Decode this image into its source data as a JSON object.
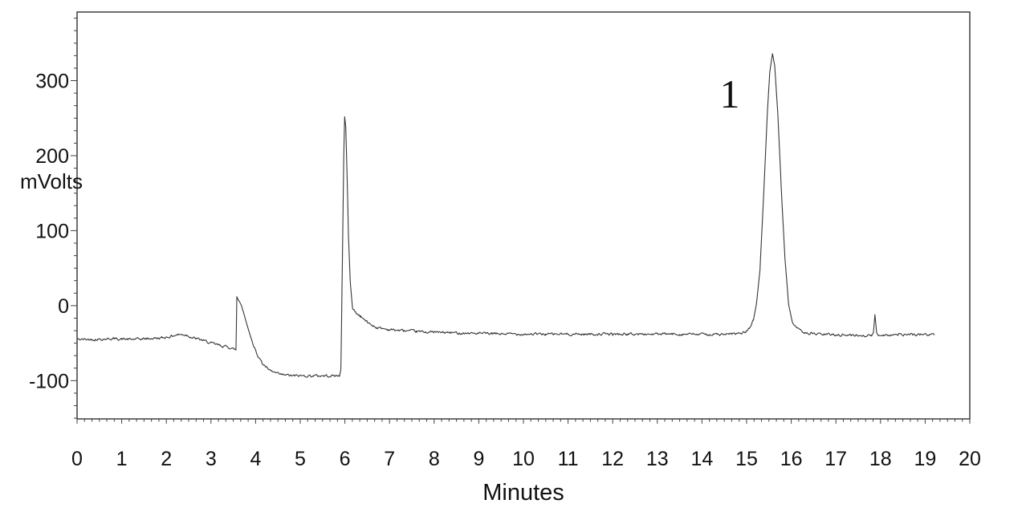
{
  "chart_data": {
    "type": "line",
    "title": "",
    "xlabel": "Minutes",
    "ylabel": "mVolts",
    "xlim": [
      0,
      20
    ],
    "ylim": [
      -151,
      391.5
    ],
    "x_major_ticks": [
      0,
      1,
      2,
      3,
      4,
      5,
      6,
      7,
      8,
      9,
      10,
      11,
      12,
      13,
      14,
      15,
      16,
      17,
      18,
      19,
      20
    ],
    "y_major_ticks": [
      -100,
      0,
      100,
      200,
      300
    ],
    "minor_divisions_per_major": 6,
    "grid": false,
    "legend": false,
    "axis_color": "#3f3f3f",
    "line_color": "#353535",
    "text_color": "#111111",
    "background_color": "#ffffff",
    "baseline_mv": -40,
    "noise_amplitude_mv": 1.4,
    "annotations": [
      {
        "text": "1",
        "x_minutes": 14.6,
        "y_mv": 283,
        "role": "peak-number"
      }
    ],
    "peaks": [
      {
        "label": "1",
        "retention_minutes": 15.58,
        "apex_mv": 336
      },
      {
        "label": "",
        "retention_minutes": 5.99,
        "apex_mv": 252
      },
      {
        "label": "",
        "retention_minutes": 3.58,
        "apex_mv": 12
      },
      {
        "label": "",
        "retention_minutes": 17.88,
        "apex_mv": -12
      }
    ],
    "trace_end_minutes": 19.2,
    "trace_anchors": [
      [
        0.0,
        -45
      ],
      [
        0.4,
        -45
      ],
      [
        0.8,
        -44
      ],
      [
        1.2,
        -45
      ],
      [
        1.6,
        -44
      ],
      [
        1.9,
        -43
      ],
      [
        2.1,
        -41
      ],
      [
        2.25,
        -38.5
      ],
      [
        2.45,
        -39
      ],
      [
        2.6,
        -43
      ],
      [
        2.8,
        -46
      ],
      [
        3.0,
        -50
      ],
      [
        3.2,
        -53
      ],
      [
        3.4,
        -55.5
      ],
      [
        3.54,
        -58.5
      ],
      [
        3.56,
        -59
      ],
      [
        3.58,
        12
      ],
      [
        3.64,
        6
      ],
      [
        3.7,
        -3
      ],
      [
        3.78,
        -20
      ],
      [
        3.87,
        -38
      ],
      [
        3.96,
        -55
      ],
      [
        4.05,
        -66
      ],
      [
        4.15,
        -77
      ],
      [
        4.32,
        -87
      ],
      [
        4.55,
        -92
      ],
      [
        4.85,
        -93.5
      ],
      [
        5.4,
        -93.5
      ],
      [
        5.88,
        -93.5
      ],
      [
        5.91,
        -85
      ],
      [
        5.945,
        60
      ],
      [
        5.975,
        200
      ],
      [
        5.995,
        252
      ],
      [
        6.02,
        238
      ],
      [
        6.05,
        170
      ],
      [
        6.08,
        95
      ],
      [
        6.12,
        32
      ],
      [
        6.17,
        -3
      ],
      [
        6.25,
        -10
      ],
      [
        6.35,
        -14
      ],
      [
        6.5,
        -22
      ],
      [
        6.7,
        -29
      ],
      [
        7.0,
        -32
      ],
      [
        7.6,
        -34.5
      ],
      [
        8.3,
        -36
      ],
      [
        9.3,
        -37.5
      ],
      [
        10.5,
        -38
      ],
      [
        12.0,
        -38
      ],
      [
        13.5,
        -38
      ],
      [
        14.6,
        -38.5
      ],
      [
        14.95,
        -36
      ],
      [
        15.05,
        -31
      ],
      [
        15.15,
        -20
      ],
      [
        15.22,
        2
      ],
      [
        15.3,
        48
      ],
      [
        15.38,
        145
      ],
      [
        15.46,
        252
      ],
      [
        15.52,
        312
      ],
      [
        15.58,
        336
      ],
      [
        15.63,
        320
      ],
      [
        15.7,
        255
      ],
      [
        15.78,
        152
      ],
      [
        15.86,
        62
      ],
      [
        15.94,
        2
      ],
      [
        16.02,
        -21
      ],
      [
        16.12,
        -31
      ],
      [
        16.3,
        -36
      ],
      [
        16.6,
        -38
      ],
      [
        17.1,
        -39
      ],
      [
        17.5,
        -39.5
      ],
      [
        17.8,
        -40
      ],
      [
        17.84,
        -37
      ],
      [
        17.875,
        -12
      ],
      [
        17.91,
        -35
      ],
      [
        17.95,
        -39
      ],
      [
        18.4,
        -39
      ],
      [
        18.8,
        -38.5
      ],
      [
        19.2,
        -38.5
      ]
    ]
  }
}
